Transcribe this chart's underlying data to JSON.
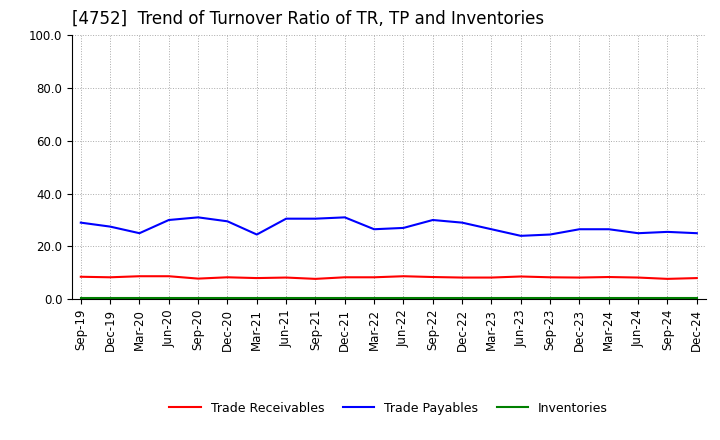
{
  "title": "[4752]  Trend of Turnover Ratio of TR, TP and Inventories",
  "x_labels": [
    "Sep-19",
    "Dec-19",
    "Mar-20",
    "Jun-20",
    "Sep-20",
    "Dec-20",
    "Mar-21",
    "Jun-21",
    "Sep-21",
    "Dec-21",
    "Mar-22",
    "Jun-22",
    "Sep-22",
    "Dec-22",
    "Mar-23",
    "Jun-23",
    "Sep-23",
    "Dec-23",
    "Mar-24",
    "Jun-24",
    "Sep-24",
    "Dec-24"
  ],
  "trade_receivables": [
    8.5,
    8.3,
    8.7,
    8.7,
    7.8,
    8.3,
    8.0,
    8.2,
    7.7,
    8.3,
    8.3,
    8.7,
    8.4,
    8.2,
    8.2,
    8.6,
    8.3,
    8.2,
    8.4,
    8.2,
    7.7,
    8.0
  ],
  "trade_payables": [
    29.0,
    27.5,
    25.0,
    30.0,
    31.0,
    29.5,
    24.5,
    30.5,
    30.5,
    31.0,
    26.5,
    27.0,
    30.0,
    29.0,
    26.5,
    24.0,
    24.5,
    26.5,
    26.5,
    25.0,
    25.5,
    25.0
  ],
  "inventories": [
    0.4,
    0.4,
    0.4,
    0.4,
    0.4,
    0.4,
    0.4,
    0.4,
    0.4,
    0.4,
    0.4,
    0.4,
    0.4,
    0.4,
    0.4,
    0.4,
    0.4,
    0.4,
    0.4,
    0.4,
    0.4,
    0.4
  ],
  "ylim": [
    0.0,
    100.0
  ],
  "yticks": [
    0.0,
    20.0,
    40.0,
    60.0,
    80.0,
    100.0
  ],
  "color_tr": "#FF0000",
  "color_tp": "#0000FF",
  "color_inv": "#008000",
  "legend_labels": [
    "Trade Receivables",
    "Trade Payables",
    "Inventories"
  ],
  "background_color": "#FFFFFF",
  "grid_color": "#AAAAAA",
  "title_fontsize": 12,
  "legend_fontsize": 9,
  "tick_fontsize": 8.5
}
